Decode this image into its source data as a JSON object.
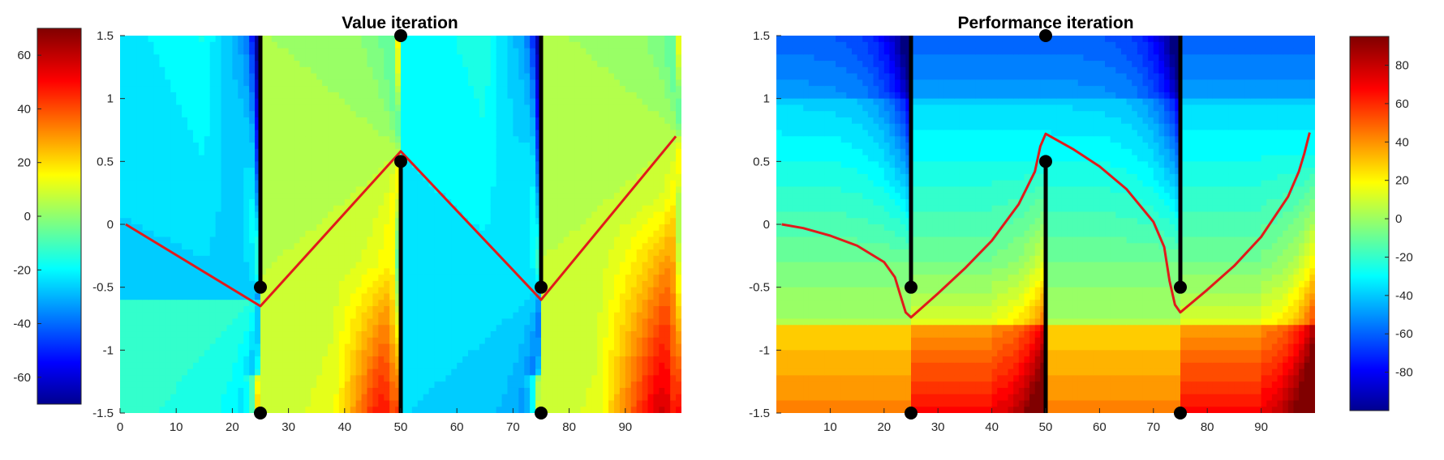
{
  "figure": {
    "background": "#ffffff"
  },
  "chart_data": [
    {
      "type": "heatmap",
      "title": "Value iteration",
      "xlabel": "",
      "ylabel": "",
      "xlim": [
        0,
        100
      ],
      "ylim": [
        -1.5,
        1.5
      ],
      "grid": false,
      "x_ticks": [
        "0",
        "10",
        "20",
        "30",
        "40",
        "50",
        "60",
        "70",
        "80",
        "90"
      ],
      "y_ticks": [
        "1.5",
        "1",
        "0.5",
        "0",
        "-0.5",
        "-1",
        "-1.5"
      ],
      "colormap": "jet",
      "colorbar": {
        "position": "left",
        "range": [
          -70,
          70
        ],
        "ticks": [
          "60",
          "40",
          "20",
          "0",
          "-20",
          "-40",
          "-60"
        ]
      },
      "walls": [
        {
          "x": 25,
          "y_from": 1.5,
          "y_to": -0.5
        },
        {
          "x": 50,
          "y_from": 0.5,
          "y_to": -1.5
        },
        {
          "x": 75,
          "y_from": 1.5,
          "y_to": -0.5
        }
      ],
      "markers": [
        {
          "x": 25,
          "y": -0.5
        },
        {
          "x": 25,
          "y": -1.5
        },
        {
          "x": 50,
          "y": 1.5
        },
        {
          "x": 50,
          "y": 0.5
        },
        {
          "x": 75,
          "y": -0.5
        },
        {
          "x": 75,
          "y": -1.5
        }
      ],
      "series": [
        {
          "color": "#e01b1b",
          "x": [
            1,
            25,
            50,
            75,
            99
          ],
          "y": [
            0,
            -0.65,
            0.58,
            -0.6,
            0.7
          ]
        }
      ]
    },
    {
      "type": "heatmap",
      "title": "Performance iteration",
      "xlabel": "",
      "ylabel": "",
      "xlim": [
        0,
        100
      ],
      "ylim": [
        -1.5,
        1.5
      ],
      "grid": false,
      "x_ticks": [
        "10",
        "20",
        "30",
        "40",
        "50",
        "60",
        "70",
        "80",
        "90"
      ],
      "y_ticks": [
        "1.5",
        "1",
        "0.5",
        "0",
        "-0.5",
        "-1",
        "-1.5"
      ],
      "colormap": "jet",
      "colorbar": {
        "position": "right",
        "range": [
          -100,
          95
        ],
        "ticks": [
          "80",
          "60",
          "40",
          "20",
          "0",
          "-20",
          "-40",
          "-60",
          "-80"
        ]
      },
      "walls": [
        {
          "x": 25,
          "y_from": 1.5,
          "y_to": -0.5
        },
        {
          "x": 50,
          "y_from": 0.5,
          "y_to": -1.5
        },
        {
          "x": 75,
          "y_from": 1.5,
          "y_to": -0.5
        }
      ],
      "markers": [
        {
          "x": 25,
          "y": -0.5
        },
        {
          "x": 25,
          "y": -1.5
        },
        {
          "x": 50,
          "y": 1.5
        },
        {
          "x": 50,
          "y": 0.5
        },
        {
          "x": 75,
          "y": -0.5
        },
        {
          "x": 75,
          "y": -1.5
        }
      ],
      "series": [
        {
          "color": "#e01b1b",
          "x": [
            1,
            5,
            10,
            15,
            20,
            22,
            23,
            24,
            25,
            30,
            35,
            40,
            45,
            48,
            49,
            50,
            55,
            60,
            65,
            70,
            72,
            73,
            74,
            75,
            80,
            85,
            90,
            95,
            97,
            98,
            99
          ],
          "y": [
            0,
            -0.03,
            -0.09,
            -0.17,
            -0.3,
            -0.42,
            -0.56,
            -0.7,
            -0.74,
            -0.55,
            -0.35,
            -0.13,
            0.16,
            0.42,
            0.62,
            0.72,
            0.6,
            0.46,
            0.28,
            0.02,
            -0.18,
            -0.45,
            -0.64,
            -0.7,
            -0.52,
            -0.33,
            -0.1,
            0.22,
            0.42,
            0.56,
            0.73
          ]
        }
      ]
    }
  ]
}
